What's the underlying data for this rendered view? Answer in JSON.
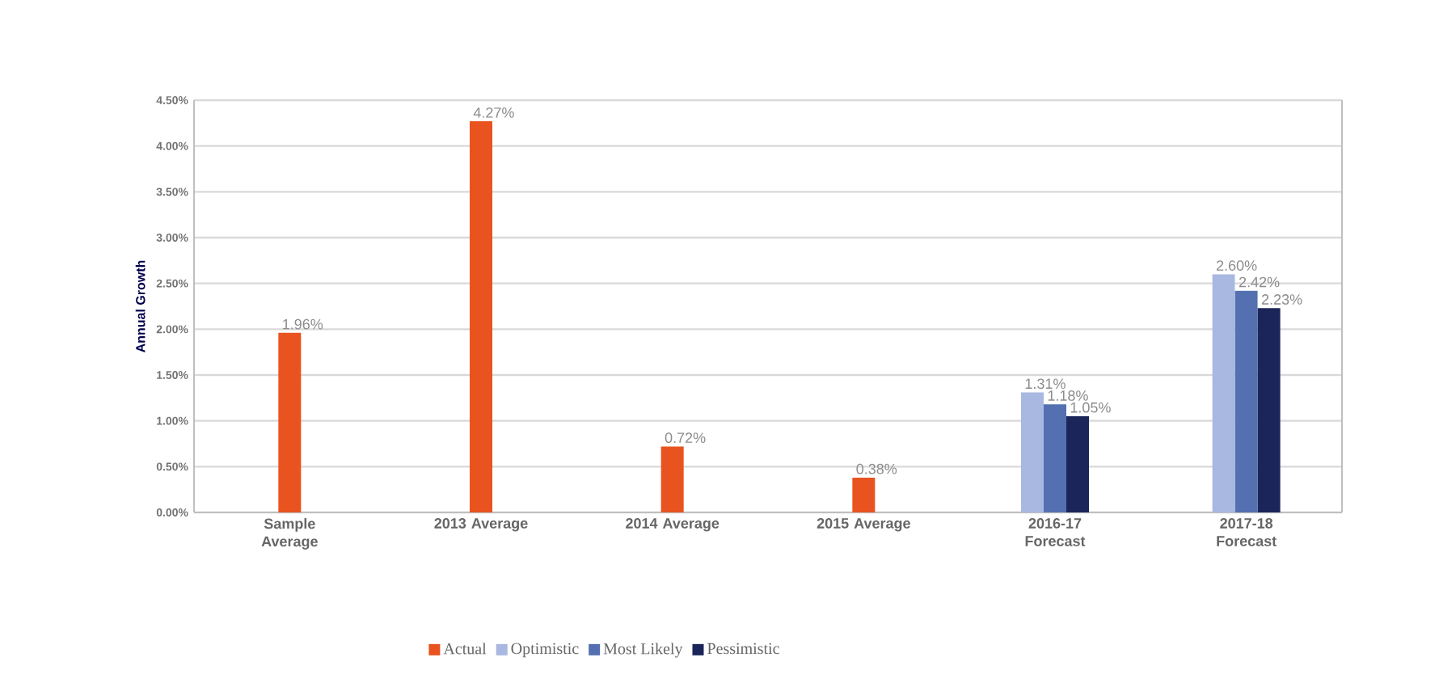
{
  "chart_data": {
    "type": "bar",
    "ylabel": "Annual Growth",
    "categories": [
      "Sample Average",
      "2013 Average",
      "2014 Average",
      "2015 Average",
      "2016-17 Forecast",
      "2017-18 Forecast"
    ],
    "series": [
      {
        "name": "Actual",
        "color": "#e8531f",
        "values": [
          1.96,
          4.27,
          0.72,
          0.38,
          null,
          null
        ],
        "value_labels": [
          "1.96%",
          "4.27%",
          "0.72%",
          "0.38%",
          null,
          null
        ]
      },
      {
        "name": "Optimistic",
        "color": "#a9b8e0",
        "values": [
          null,
          null,
          null,
          null,
          1.31,
          2.6
        ],
        "value_labels": [
          null,
          null,
          null,
          null,
          "1.31%",
          "2.60%"
        ]
      },
      {
        "name": "Most Likely",
        "color": "#5470b0",
        "values": [
          null,
          null,
          null,
          null,
          1.18,
          2.42
        ],
        "value_labels": [
          null,
          null,
          null,
          null,
          "1.18%",
          "2.42%"
        ]
      },
      {
        "name": "Pessimistic",
        "color": "#1c2559",
        "values": [
          null,
          null,
          null,
          null,
          1.05,
          2.23
        ],
        "value_labels": [
          null,
          null,
          null,
          null,
          "1.05%",
          "2.23%"
        ]
      }
    ],
    "ylim": [
      0,
      4.5
    ],
    "yticks": [
      {
        "value": 0,
        "label": "0.00%"
      },
      {
        "value": 0.5,
        "label": "0.50%"
      },
      {
        "value": 1,
        "label": "1.00%"
      },
      {
        "value": 1.5,
        "label": "1.50%"
      },
      {
        "value": 2,
        "label": "2.00%"
      },
      {
        "value": 2.5,
        "label": "2.50%"
      },
      {
        "value": 3,
        "label": "3.00%"
      },
      {
        "value": 3.5,
        "label": "3.50%"
      },
      {
        "value": 4,
        "label": "4.00%"
      },
      {
        "value": 4.5,
        "label": "4.50%"
      }
    ],
    "grid": "y",
    "legend": "bottom"
  }
}
